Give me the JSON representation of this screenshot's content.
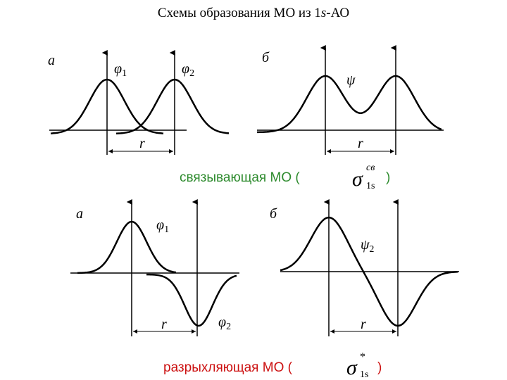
{
  "title": {
    "text_before": "Схемы образования МО из 1",
    "italic": "s",
    "text_after": "-АО"
  },
  "bonding": {
    "panel_a": {
      "letter": "а",
      "orbital_1": {
        "symbol": "φ",
        "index": "1"
      },
      "orbital_2": {
        "symbol": "φ",
        "index": "2"
      },
      "distance": "r"
    },
    "panel_b": {
      "letter": "б",
      "orbital": {
        "symbol": "ψ"
      },
      "distance": "r"
    },
    "caption": {
      "text": "связывающая МО (",
      "symbol": "σ",
      "superscript": "св",
      "subscript": "1s",
      "close": ")"
    }
  },
  "antibonding": {
    "panel_a": {
      "letter": "а",
      "orbital_1": {
        "symbol": "φ",
        "index": "1"
      },
      "orbital_2": {
        "symbol": "φ",
        "index": "2"
      },
      "distance": "r"
    },
    "panel_b": {
      "letter": "б",
      "orbital": {
        "symbol": "ψ",
        "index": "2"
      },
      "distance": "r"
    },
    "caption": {
      "text": "разрыхляющая МО (",
      "symbol": "σ",
      "superscript": "*",
      "subscript": "1s",
      "close": ")"
    }
  }
}
